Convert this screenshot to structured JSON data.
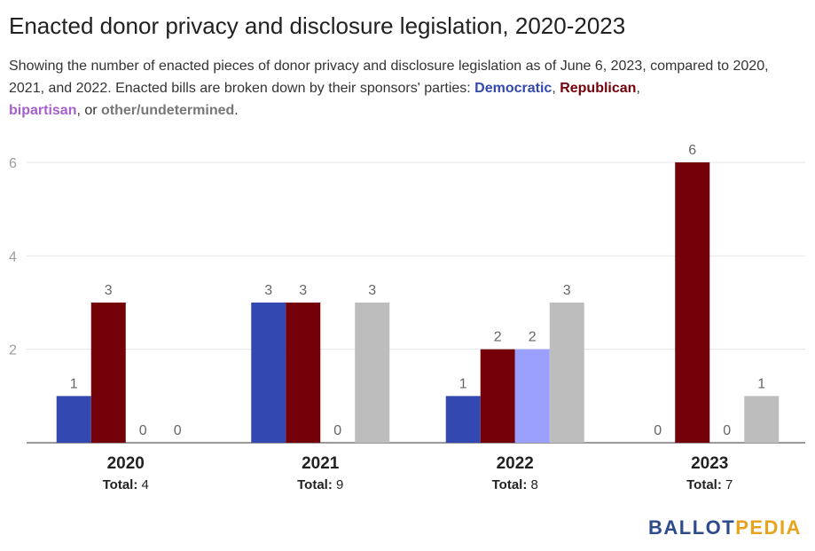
{
  "title": "Enacted donor privacy and disclosure legislation, 2020-2023",
  "subtitle": {
    "text1": "Showing the number of enacted pieces of donor privacy and disclosure legislation as of June 6, 2023, compared to 2020, 2021, and 2022. Enacted bills are broken down by their sponsors' parties: ",
    "democratic": "Democratic",
    "sep1": ", ",
    "republican": "Republican",
    "sep2": ", ",
    "bipartisan": "bipartisan",
    "sep3": ", or ",
    "other": "other/undetermined",
    "end": "."
  },
  "colors": {
    "democratic": "#3348b0",
    "republican": "#740009",
    "bipartisan": "#9b9ffe",
    "other": "#bdbdbd",
    "bipartisan_text": "#a55fcf",
    "other_text": "#777777"
  },
  "chart_data": {
    "type": "bar",
    "categories": [
      "2020",
      "2021",
      "2022",
      "2023"
    ],
    "category_totals_label": "Total:",
    "totals": [
      4,
      9,
      8,
      7
    ],
    "series": [
      {
        "name": "Democratic",
        "values": [
          1,
          3,
          1,
          0
        ]
      },
      {
        "name": "Republican",
        "values": [
          3,
          3,
          2,
          6
        ]
      },
      {
        "name": "bipartisan",
        "values": [
          0,
          0,
          2,
          0
        ]
      },
      {
        "name": "other/undetermined",
        "values": [
          0,
          3,
          3,
          1
        ]
      }
    ],
    "yticks": [
      2,
      4,
      6
    ],
    "ylim": [
      0,
      6
    ],
    "grid": true
  },
  "logo": {
    "part1": "BALLOT",
    "part2": "PEDIA"
  }
}
